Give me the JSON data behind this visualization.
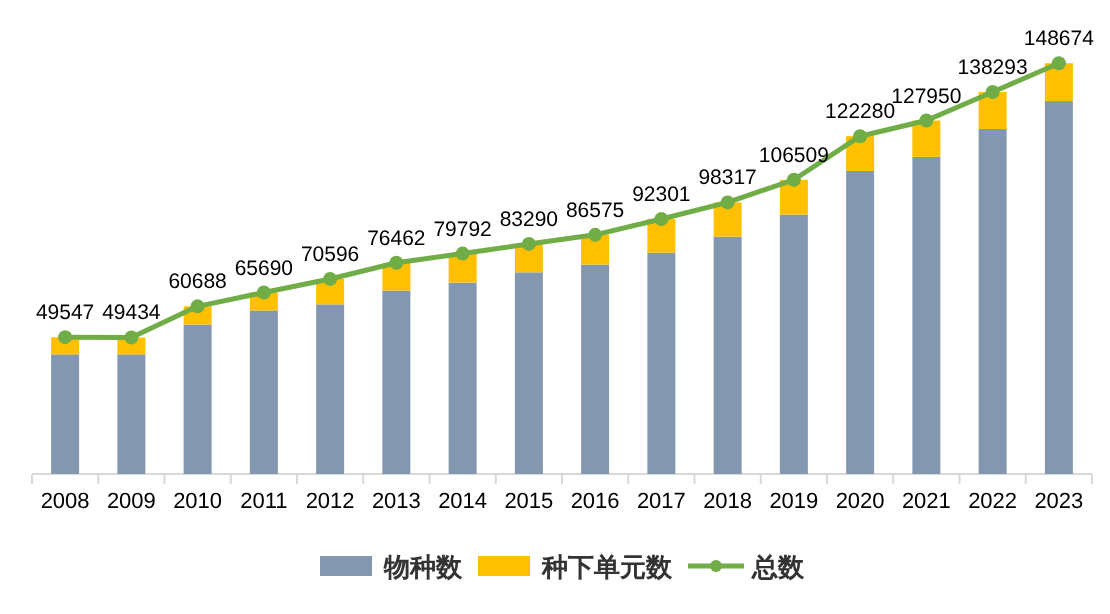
{
  "chart_data": {
    "type": "bar",
    "stacked": true,
    "categories": [
      "2008",
      "2009",
      "2010",
      "2011",
      "2012",
      "2013",
      "2014",
      "2015",
      "2016",
      "2017",
      "2018",
      "2019",
      "2020",
      "2021",
      "2022",
      "2023"
    ],
    "tick_labels": "x",
    "legend": "bottom",
    "series": [
      {
        "name": "物种数",
        "color": "#8497b0",
        "values": [
          43300,
          43300,
          54100,
          59200,
          61400,
          66400,
          69300,
          73000,
          75800,
          80100,
          85900,
          93900,
          109700,
          114800,
          124900,
          135000
        ]
      },
      {
        "name": "种下单元数",
        "color": "#ffc000",
        "values": [
          6200,
          6100,
          6600,
          6500,
          9200,
          10000,
          10500,
          10300,
          10800,
          12200,
          12400,
          12600,
          12600,
          13150,
          13400,
          13700
        ]
      },
      {
        "name": "总数",
        "type": "line",
        "color": "#70ad47",
        "marker": "circle",
        "values": [
          49547,
          49434,
          60688,
          65690,
          70596,
          76462,
          79792,
          83290,
          86575,
          92301,
          98317,
          106509,
          122280,
          127950,
          138293,
          148674
        ],
        "value_labels": [
          "49547",
          "49434",
          "60688",
          "65690",
          "70596",
          "76462",
          "79792",
          "83290",
          "86575",
          "92301",
          "98317",
          "106509",
          "122280",
          "127950",
          "138293",
          "148674"
        ]
      }
    ]
  }
}
